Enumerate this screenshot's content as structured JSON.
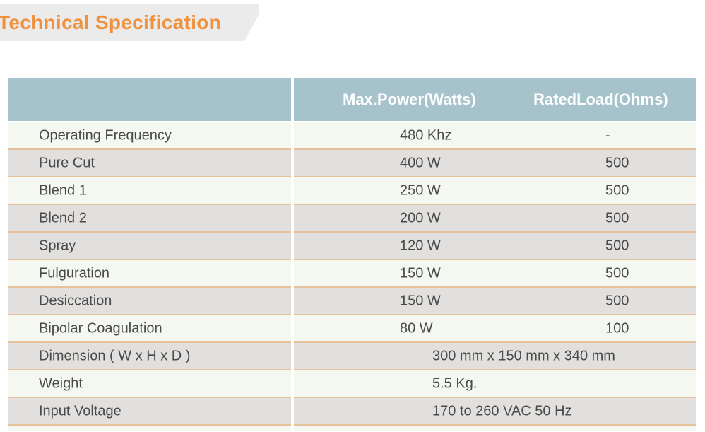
{
  "title": {
    "text": "Technical Specification",
    "text_color": "#f0913e",
    "banner_color": "#ebebeb"
  },
  "table": {
    "header": {
      "power": "Max.Power(Watts)",
      "load": "RatedLoad(Ohms)",
      "bg_color": "#a6c2cb",
      "text_color": "#ffffff"
    },
    "rows": [
      {
        "label": "Operating Frequency",
        "power": "480 Khz",
        "load": "-"
      },
      {
        "label": "Pure Cut",
        "power": "400 W",
        "load": "500"
      },
      {
        "label": "Blend 1",
        "power": "250 W",
        "load": "500"
      },
      {
        "label": "Blend 2",
        "power": "200 W",
        "load": "500"
      },
      {
        "label": "Spray",
        "power": "120 W",
        "load": "500"
      },
      {
        "label": "Fulguration",
        "power": "150 W",
        "load": "500"
      },
      {
        "label": "Desiccation",
        "power": "150 W",
        "load": "500"
      },
      {
        "label": "Bipolar Coagulation",
        "power": "80 W",
        "load": "100"
      },
      {
        "label": "Dimension ( W x H x D )",
        "value": "300 mm x 150 mm x 340 mm"
      },
      {
        "label": "Weight",
        "value": "5.5 Kg."
      },
      {
        "label": "Input Voltage",
        "value": "170 to 260 VAC 50 Hz"
      }
    ],
    "colors": {
      "row_pale": "#f4f8f1",
      "row_gray": "#e1e0de",
      "separator": "#e5c29a",
      "body_text": "#4a4a4a",
      "column_divider": "#ffffff"
    }
  }
}
